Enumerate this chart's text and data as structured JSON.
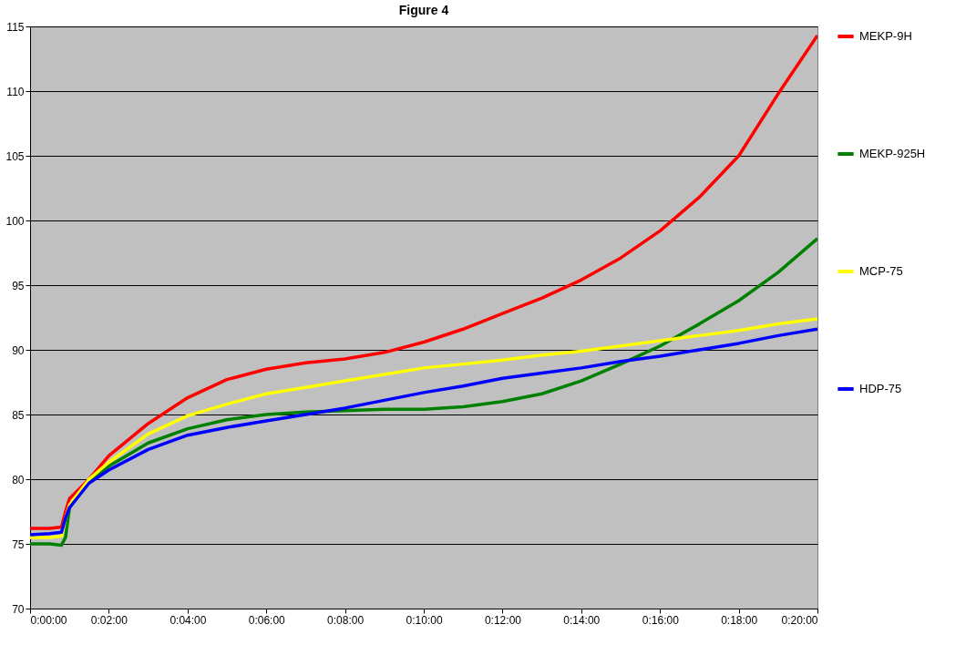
{
  "chart_data": {
    "type": "line",
    "title": "Figure 4",
    "x": [
      0,
      0.0083,
      0.0133,
      0.015,
      0.0167,
      0.025,
      0.0333,
      0.05,
      0.0667,
      0.0833,
      0.1,
      0.1167,
      0.1333,
      0.15,
      0.1667,
      0.1833,
      0.2,
      0.2167,
      0.2333,
      0.25,
      0.2667,
      0.2833,
      0.3,
      0.3167,
      0.3333
    ],
    "xlim": [
      0,
      0.3333
    ],
    "xticks": [
      {
        "value": 0,
        "label": "0:00:00"
      },
      {
        "value": 0.0333,
        "label": "0:02:00"
      },
      {
        "value": 0.0667,
        "label": "0:04:00"
      },
      {
        "value": 0.1,
        "label": "0:06:00"
      },
      {
        "value": 0.1333,
        "label": "0:08:00"
      },
      {
        "value": 0.1667,
        "label": "0:10:00"
      },
      {
        "value": 0.2,
        "label": "0:12:00"
      },
      {
        "value": 0.2333,
        "label": "0:14:00"
      },
      {
        "value": 0.2667,
        "label": "0:16:00"
      },
      {
        "value": 0.3,
        "label": "0:18:00"
      },
      {
        "value": 0.3333,
        "label": "0:20:00"
      }
    ],
    "ylim": [
      70,
      115
    ],
    "yticks": [
      70,
      75,
      80,
      85,
      90,
      95,
      100,
      105,
      110,
      115
    ],
    "grid": "y",
    "legend": "right",
    "marker": "none",
    "line_style": "solid",
    "series": [
      {
        "name": "MEKP-9H",
        "color": "#ff0000",
        "values": [
          76.2,
          76.2,
          76.3,
          77.5,
          78.5,
          80,
          81.8,
          84.3,
          86.3,
          87.7,
          88.5,
          89,
          89.3,
          89.8,
          90.6,
          91.6,
          92.8,
          94,
          95.4,
          97.1,
          99.2,
          101.8,
          105,
          109.8,
          114.3
        ]
      },
      {
        "name": "MEKP-925H",
        "color": "#008000",
        "values": [
          75,
          75,
          74.9,
          75.5,
          77.8,
          79.8,
          81,
          82.8,
          83.9,
          84.6,
          85,
          85.2,
          85.3,
          85.4,
          85.4,
          85.6,
          86,
          86.6,
          87.6,
          88.9,
          90.3,
          92,
          93.8,
          96,
          98.6
        ]
      },
      {
        "name": "MCP-75",
        "color": "#ffff00",
        "values": [
          75.5,
          75.5,
          75.6,
          77,
          78,
          80,
          81.3,
          83.5,
          84.9,
          85.8,
          86.6,
          87.1,
          87.6,
          88.1,
          88.6,
          88.9,
          89.2,
          89.6,
          89.9,
          90.3,
          90.7,
          91.1,
          91.5,
          92,
          92.4
        ]
      },
      {
        "name": "HDP-75",
        "color": "#0000ff",
        "values": [
          75.7,
          75.8,
          75.9,
          77,
          77.8,
          79.7,
          80.7,
          82.3,
          83.4,
          84,
          84.5,
          85,
          85.5,
          86.1,
          86.7,
          87.2,
          87.8,
          88.2,
          88.6,
          89.1,
          89.5,
          90,
          90.5,
          91.1,
          91.6
        ]
      }
    ]
  }
}
